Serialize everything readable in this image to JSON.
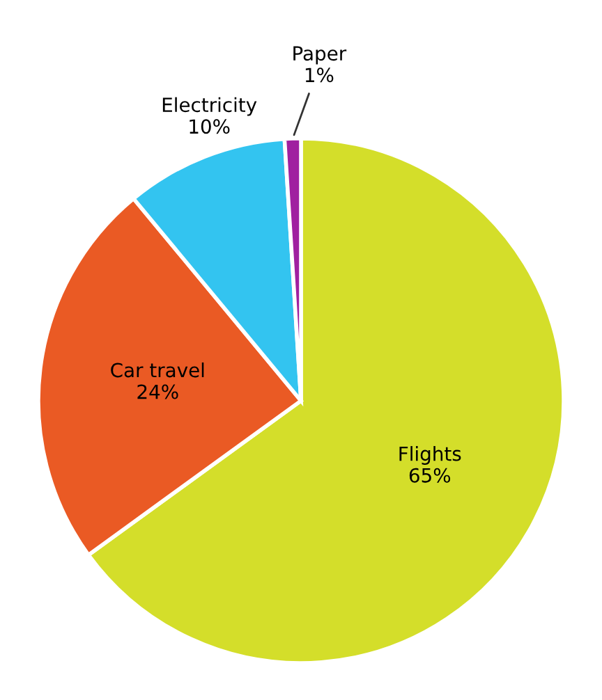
{
  "chart_data": {
    "type": "pie",
    "categories": [
      "Flights",
      "Car travel",
      "Electricity",
      "Paper"
    ],
    "values": [
      65,
      24,
      10,
      1
    ],
    "value_labels": [
      "65%",
      "24%",
      "10%",
      "1%"
    ],
    "colors": [
      "#d4de2a",
      "#ea5a24",
      "#33c4f0",
      "#a020a0"
    ]
  }
}
